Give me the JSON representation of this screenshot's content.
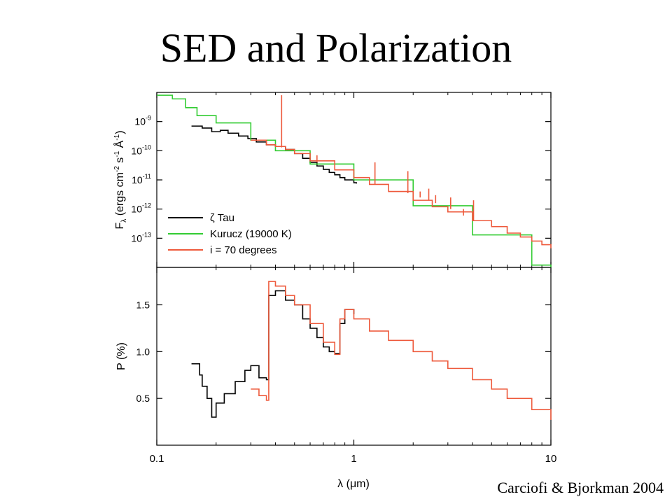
{
  "slide": {
    "title": "SED and Polarization",
    "credit": "Carciofi & Bjorkman 2004"
  },
  "chart_data": [
    {
      "type": "line",
      "panel": "top",
      "x_scale": "log",
      "y_scale": "log",
      "xlim": [
        0.1,
        10
      ],
      "ylim": [
        1e-14,
        1e-08
      ],
      "y_ticks": [
        1e-09,
        1e-10,
        1e-11,
        1e-12,
        1e-13
      ],
      "y_tick_exponents": [
        "-9",
        "-10",
        "-11",
        "-12",
        "-13"
      ],
      "ylabel": {
        "main": "F",
        "sub": "λ",
        "open": " (ergs cm",
        "e1": "-2",
        "mid1": " s",
        "e2": "-1",
        "mid2": " Å",
        "e3": "-1",
        "close": ")"
      },
      "legend_position": "bottom-left",
      "series": [
        {
          "name": "ζ Tau",
          "color": "#000000",
          "x": [
            0.15,
            0.17,
            0.19,
            0.21,
            0.23,
            0.26,
            0.29,
            0.32,
            0.36,
            0.4,
            0.45,
            0.5,
            0.55,
            0.6,
            0.65,
            0.7,
            0.75,
            0.8,
            0.85,
            0.9,
            1.0,
            1.03
          ],
          "y": [
            7e-10,
            6e-10,
            4.5e-10,
            5e-10,
            4e-10,
            3.2e-10,
            2.6e-10,
            2e-10,
            1.6e-10,
            1.4e-10,
            1.1e-10,
            8e-11,
            5.5e-11,
            4e-11,
            3e-11,
            2.3e-11,
            1.8e-11,
            1.5e-11,
            1.2e-11,
            1e-11,
            8e-12,
            7.5e-12
          ]
        },
        {
          "name": "Kurucz (19000 K)",
          "color": "#33cc33",
          "x": [
            0.1,
            0.12,
            0.14,
            0.16,
            0.2,
            0.3,
            0.4,
            0.6,
            1.0,
            2.0,
            4.0,
            8.0,
            10.0
          ],
          "y": [
            8e-09,
            6e-09,
            3e-09,
            1.6e-09,
            9e-10,
            2.3e-10,
            1e-10,
            3.5e-11,
            1e-11,
            1.3e-12,
            1.3e-13,
            1.2e-14,
            6e-15
          ]
        },
        {
          "name": "i = 70 degrees",
          "color": "#ee5a3c",
          "x": [
            0.3,
            0.36,
            0.4,
            0.45,
            0.5,
            0.6,
            0.8,
            1.0,
            1.2,
            1.5,
            2.0,
            2.5,
            3.0,
            4.0,
            5.0,
            6.0,
            7.0,
            8.0,
            9.0,
            10.0
          ],
          "y": [
            2.3e-10,
            1.6e-10,
            1.4e-10,
            1.1e-10,
            8e-11,
            4.5e-11,
            2.2e-11,
            1.2e-11,
            7e-12,
            4e-12,
            2e-12,
            1.2e-12,
            8e-13,
            4e-13,
            2.5e-13,
            1.5e-13,
            1.1e-13,
            8e-14,
            6e-14,
            4.5e-14
          ]
        }
      ],
      "spikes": [
        {
          "x": 0.43,
          "y_base": 1.3e-10,
          "y_peak": 8e-09
        },
        {
          "x": 0.65,
          "y_base": 4e-11,
          "y_peak": 7e-11
        },
        {
          "x": 1.28,
          "y_base": 7e-12,
          "y_peak": 4e-11
        },
        {
          "x": 1.88,
          "y_base": 3.5e-12,
          "y_peak": 2e-11
        },
        {
          "x": 2.17,
          "y_base": 2.5e-12,
          "y_peak": 4e-12
        },
        {
          "x": 2.4,
          "y_base": 2e-12,
          "y_peak": 5e-12
        },
        {
          "x": 2.6,
          "y_base": 1.6e-12,
          "y_peak": 3e-12
        },
        {
          "x": 3.1,
          "y_base": 1e-12,
          "y_peak": 2.5e-12
        },
        {
          "x": 3.6,
          "y_base": 6e-13,
          "y_peak": 1e-12
        },
        {
          "x": 4.05,
          "y_base": 4e-13,
          "y_peak": 2e-12
        }
      ]
    },
    {
      "type": "line",
      "panel": "bottom",
      "x_scale": "log",
      "xlim": [
        0.1,
        10
      ],
      "ylim": [
        0.0,
        1.9
      ],
      "y_ticks": [
        0.5,
        1.0,
        1.5
      ],
      "y_tick_labels": [
        "0.5",
        "1.0",
        "1.5"
      ],
      "ylabel": "P (%)",
      "x_ticks": [
        0.1,
        1,
        10
      ],
      "x_tick_labels": [
        "0.1",
        "1",
        "10"
      ],
      "xlabel": "λ (μm)",
      "series": [
        {
          "name": "ζ Tau",
          "color": "#000000",
          "x": [
            0.15,
            0.16,
            0.165,
            0.17,
            0.18,
            0.19,
            0.2,
            0.22,
            0.25,
            0.28,
            0.3,
            0.33,
            0.36,
            0.37,
            0.4,
            0.45,
            0.5,
            0.55,
            0.6,
            0.65,
            0.7,
            0.75,
            0.8,
            0.85,
            0.9,
            1.0
          ],
          "y": [
            0.87,
            0.87,
            0.75,
            0.63,
            0.5,
            0.3,
            0.45,
            0.55,
            0.68,
            0.8,
            0.85,
            0.72,
            0.7,
            1.6,
            1.65,
            1.55,
            1.5,
            1.35,
            1.25,
            1.15,
            1.05,
            1.0,
            0.98,
            1.3,
            1.45,
            1.4
          ]
        },
        {
          "name": "i = 70 degrees",
          "color": "#ee5a3c",
          "x": [
            0.3,
            0.33,
            0.36,
            0.37,
            0.4,
            0.45,
            0.5,
            0.6,
            0.7,
            0.8,
            0.85,
            0.9,
            1.0,
            1.2,
            1.5,
            2.0,
            2.5,
            3.0,
            4.0,
            5.0,
            6.0,
            8.0,
            10.0
          ],
          "y": [
            0.6,
            0.53,
            0.48,
            1.75,
            1.7,
            1.6,
            1.5,
            1.3,
            1.1,
            0.97,
            1.35,
            1.45,
            1.35,
            1.22,
            1.12,
            1.0,
            0.9,
            0.82,
            0.7,
            0.6,
            0.5,
            0.38,
            0.27
          ]
        }
      ]
    }
  ]
}
